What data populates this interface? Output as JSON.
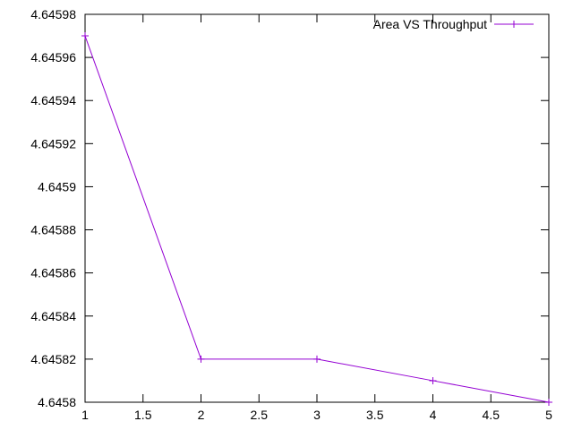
{
  "chart_data": {
    "type": "line",
    "title": "",
    "xlabel": "",
    "ylabel": "",
    "xlim": [
      1,
      5
    ],
    "ylim": [
      4.6458,
      4.64598
    ],
    "grid": false,
    "legend_position": "top-right",
    "x_ticks": [
      "1",
      "1.5",
      "2",
      "2.5",
      "3",
      "3.5",
      "4",
      "4.5",
      "5"
    ],
    "y_ticks": [
      "4.6458",
      "4.64582",
      "4.64584",
      "4.64586",
      "4.64588",
      "4.6459",
      "4.64592",
      "4.64594",
      "4.64596",
      "4.64598"
    ],
    "series": [
      {
        "name": "Area VS Throughput",
        "color": "#9400d3",
        "marker": "plus",
        "x": [
          1,
          2,
          3,
          4,
          5
        ],
        "y": [
          4.64597,
          4.64582,
          4.64582,
          4.64581,
          4.6458
        ]
      }
    ]
  }
}
